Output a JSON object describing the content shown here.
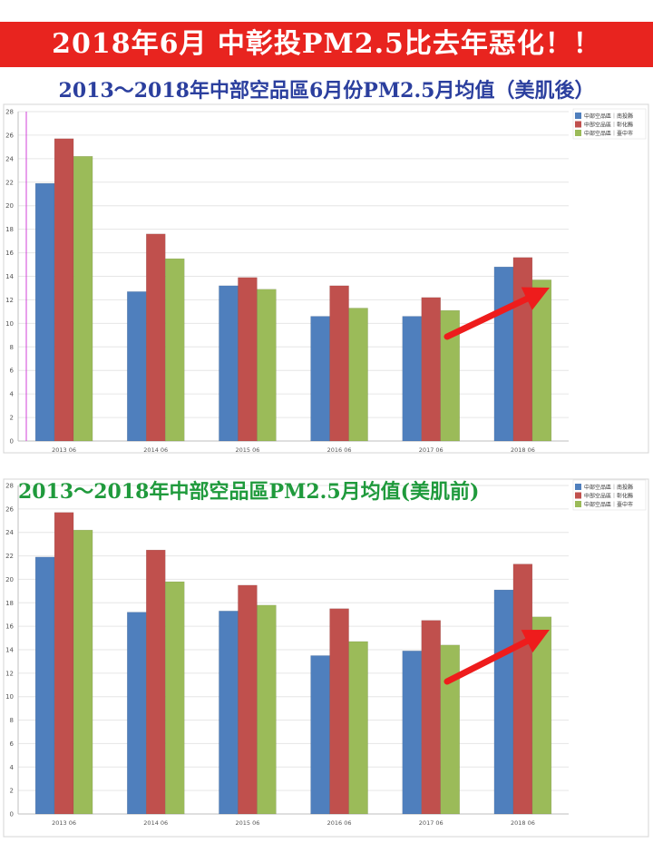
{
  "banner": "2018年6月 中彰投PM2.5比去年惡化！！",
  "colors": {
    "banner_bg": "#e8241f",
    "title1": "#2b3f9e",
    "title2": "#1f9a3c",
    "arrow": "#ee1c1c"
  },
  "chart_data": [
    {
      "type": "bar",
      "title": "2013～2018年中部空品區6月份PM2.5月均值（美肌後）",
      "categories": [
        "2013 06",
        "2014 06",
        "2015 06",
        "2016 06",
        "2017 06",
        "2018 06"
      ],
      "series": [
        {
          "name": "中部空品區｜南投縣",
          "color": "#4f7fbd",
          "values": [
            21.9,
            12.7,
            13.2,
            10.6,
            10.6,
            14.8
          ]
        },
        {
          "name": "中部空品區｜彰化縣",
          "color": "#c0504d",
          "values": [
            25.7,
            17.6,
            13.9,
            13.2,
            12.2,
            15.6
          ]
        },
        {
          "name": "中部空品區｜臺中市",
          "color": "#9bbb59",
          "values": [
            24.2,
            15.5,
            12.9,
            11.3,
            11.1,
            13.7
          ]
        }
      ],
      "yticks": [
        0,
        2,
        4,
        6,
        8,
        10,
        12,
        14,
        16,
        18,
        20,
        22,
        24,
        26,
        28
      ],
      "ylim": [
        0,
        28
      ],
      "grid": true,
      "legend": "top-right"
    },
    {
      "type": "bar",
      "title": "2013～2018年中部空品區PM2.5月均值(美肌前)",
      "categories": [
        "2013 06",
        "2014 06",
        "2015 06",
        "2016 06",
        "2017 06",
        "2018 06"
      ],
      "series": [
        {
          "name": "中部空品區｜南投縣",
          "color": "#4f7fbd",
          "values": [
            21.9,
            17.2,
            17.3,
            13.5,
            13.9,
            19.1
          ]
        },
        {
          "name": "中部空品區｜彰化縣",
          "color": "#c0504d",
          "values": [
            25.7,
            22.5,
            19.5,
            17.5,
            16.5,
            21.3
          ]
        },
        {
          "name": "中部空品區｜臺中市",
          "color": "#9bbb59",
          "values": [
            24.2,
            19.8,
            17.8,
            14.7,
            14.4,
            16.8
          ]
        }
      ],
      "yticks": [
        0,
        2,
        4,
        6,
        8,
        10,
        12,
        14,
        16,
        18,
        20,
        22,
        24,
        26,
        28
      ],
      "ylim": [
        0,
        28
      ],
      "grid": true,
      "legend": "top-right"
    }
  ]
}
